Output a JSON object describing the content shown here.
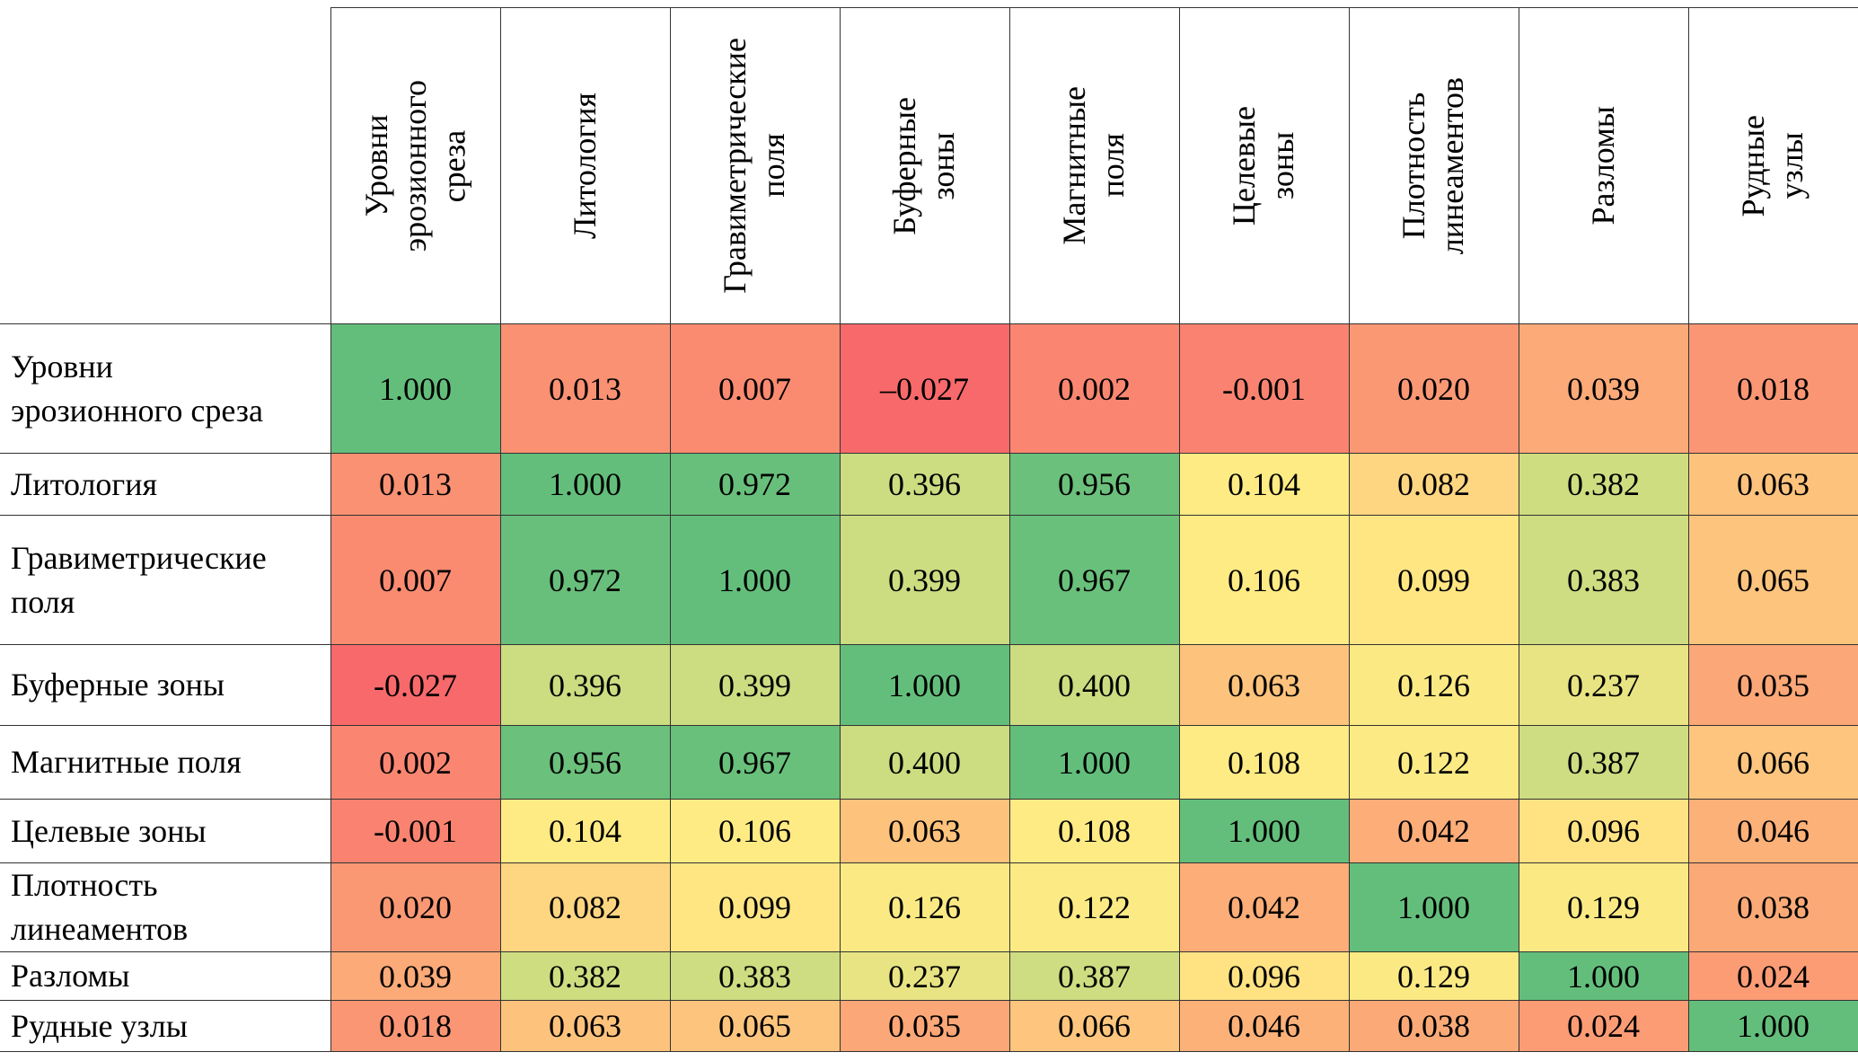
{
  "table": {
    "columns": [
      "Уровни\nэрозионного\nсреза",
      "Литология",
      "Гравиметрические\nполя",
      "Буферные\nзоны",
      "Магнитные\nполя",
      "Целевые\nзоны",
      "Плотность\nлинеаментов",
      "Разломы",
      "Рудные\nузлы"
    ],
    "rows": [
      {
        "label": "Уровни\nэрозионного среза",
        "cells": [
          "1.000",
          "0.013",
          "0.007",
          "–0.027",
          "0.002",
          "-0.001",
          "0.020",
          "0.039",
          "0.018"
        ]
      },
      {
        "label": "Литология",
        "cells": [
          "0.013",
          "1.000",
          "0.972",
          "0.396",
          "0.956",
          "0.104",
          "0.082",
          "0.382",
          "0.063"
        ]
      },
      {
        "label": "Гравиметрические\nполя",
        "cells": [
          "0.007",
          "0.972",
          "1.000",
          "0.399",
          "0.967",
          "0.106",
          "0.099",
          "0.383",
          "0.065"
        ]
      },
      {
        "label": "Буферные зоны",
        "cells": [
          "-0.027",
          "0.396",
          "0.399",
          "1.000",
          "0.400",
          "0.063",
          "0.126",
          "0.237",
          "0.035"
        ]
      },
      {
        "label": "Магнитные поля",
        "cells": [
          "0.002",
          "0.956",
          "0.967",
          "0.400",
          "1.000",
          "0.108",
          "0.122",
          "0.387",
          "0.066"
        ]
      },
      {
        "label": "Целевые зоны",
        "cells": [
          "-0.001",
          "0.104",
          "0.106",
          "0.063",
          "0.108",
          "1.000",
          "0.042",
          "0.096",
          "0.046"
        ]
      },
      {
        "label": "Плотность\nлинеаментов",
        "cells": [
          "0.020",
          "0.082",
          "0.099",
          "0.126",
          "0.122",
          "0.042",
          "1.000",
          "0.129",
          "0.038"
        ]
      },
      {
        "label": "Разломы",
        "cells": [
          "0.039",
          "0.382",
          "0.383",
          "0.237",
          "0.387",
          "0.096",
          "0.129",
          "1.000",
          "0.024"
        ]
      },
      {
        "label": "Рудные узлы",
        "cells": [
          "0.018",
          "0.063",
          "0.065",
          "0.035",
          "0.066",
          "0.046",
          "0.038",
          "0.024",
          "1.000"
        ]
      }
    ]
  }
}
